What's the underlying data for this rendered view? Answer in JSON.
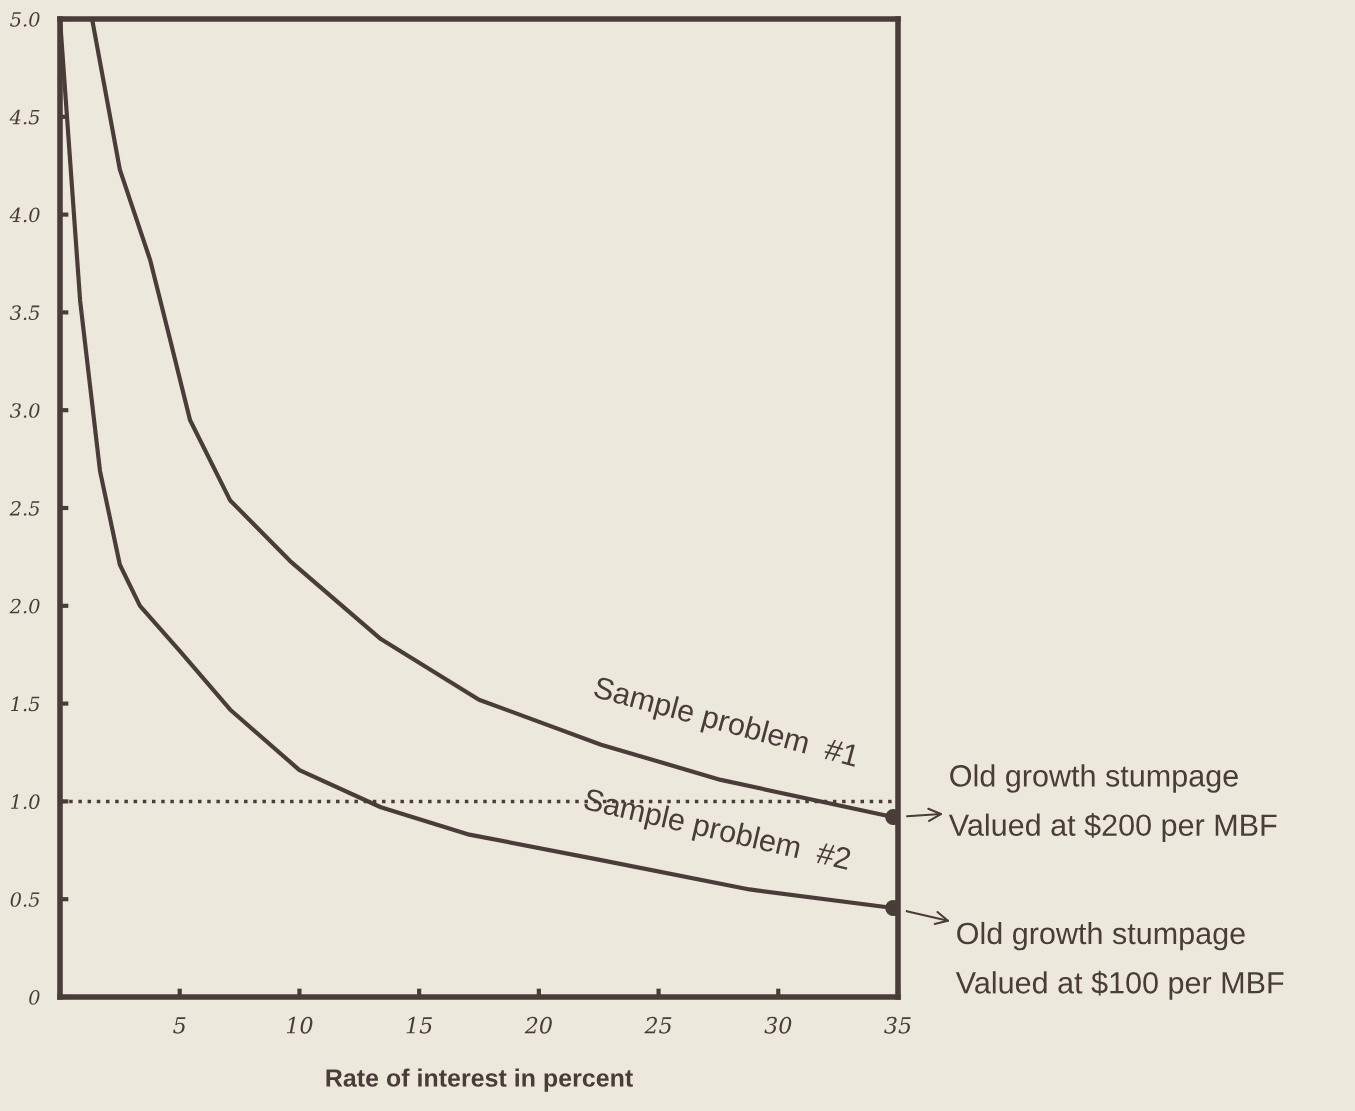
{
  "chart_data": {
    "type": "line",
    "xlabel": "Rate of interest in percent",
    "xlim": [
      0,
      35
    ],
    "xticks": [
      {
        "value": 0,
        "label": null
      },
      5,
      10,
      15,
      20,
      25,
      30,
      35
    ],
    "ylim": [
      0,
      5
    ],
    "yticks": [
      0,
      {
        "value": 0.5,
        "label": "0.5"
      },
      {
        "value": 1,
        "label": "1.0"
      },
      {
        "value": 1.5,
        "label": "1.5"
      },
      {
        "value": 2,
        "label": "2.0"
      },
      {
        "value": 2.5,
        "label": "2.5"
      },
      {
        "value": 3,
        "label": "3.0"
      },
      {
        "value": 3.5,
        "label": "3.5"
      },
      {
        "value": 4,
        "label": "4.0"
      },
      {
        "value": 4.5,
        "label": "4.5"
      },
      {
        "value": 5,
        "label": "5.0"
      }
    ],
    "grid": false,
    "line_style": "solid",
    "series": [
      {
        "color": "#4a3d39",
        "x": [
          1.34,
          2.5,
          3.76,
          4.6,
          5.43,
          7.1,
          9.6,
          13.4,
          17.5,
          22.6,
          27.6,
          34.8
        ],
        "values": [
          5.0,
          4.23,
          3.77,
          3.36,
          2.95,
          2.54,
          2.23,
          1.83,
          1.52,
          1.29,
          1.11,
          0.92
        ]
      },
      {
        "color": "#4a3d39",
        "x": [
          0,
          0.84,
          1.67,
          2.5,
          3.34,
          5.0,
          7.1,
          10.0,
          13.4,
          17.1,
          22.6,
          28.8,
          34.8
        ],
        "values": [
          5.0,
          3.56,
          2.69,
          2.21,
          2.0,
          1.77,
          1.47,
          1.16,
          0.97,
          0.83,
          0.7,
          0.55,
          0.455
        ]
      },
      {
        "type": "scatter",
        "color": "#4a3d39",
        "x": [
          34.8,
          34.8
        ],
        "values": [
          0.92,
          0.455
        ]
      }
    ],
    "ref_lines": [
      {
        "axis": "y",
        "value": 1.0,
        "line_style": "dotted",
        "color": "#4a3d39"
      }
    ],
    "annotations": [
      "Sample problem  #1",
      "Sample problem  #2",
      {
        "text": "Old growth stumpage\nValued at $200 per MBF",
        "x": 34.8,
        "y": 0.92
      },
      {
        "text": "Old growth stumpage\nValued at $100 per MBF",
        "x": 34.8,
        "y": 0.455
      }
    ]
  }
}
